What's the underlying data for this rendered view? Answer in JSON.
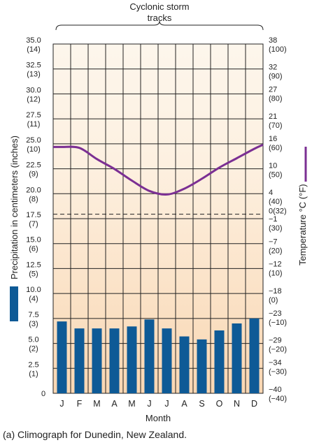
{
  "chart_data": {
    "type": "bar",
    "annotation": "Cyclonic storm tracks",
    "caption": "(a) Climograph for Dunedin, New Zealand.",
    "xlabel": "Month",
    "categories": [
      "J",
      "F",
      "M",
      "A",
      "M",
      "J",
      "J",
      "A",
      "S",
      "O",
      "N",
      "D"
    ],
    "grid": true,
    "series": [
      {
        "name": "Precipitation",
        "type": "bar",
        "axis": "left",
        "color": "#0e5a96",
        "values": [
          7.2,
          6.5,
          6.5,
          6.5,
          6.7,
          7.4,
          6.5,
          5.7,
          5.4,
          6.3,
          7.0,
          7.5
        ]
      },
      {
        "name": "Temperature",
        "type": "line",
        "axis": "right",
        "color": "#7b2f93",
        "values": [
          15.0,
          14.8,
          12.3,
          10.1,
          7.5,
          5.2,
          4.4,
          5.7,
          7.9,
          10.4,
          12.5,
          14.6
        ]
      }
    ],
    "left_axis": {
      "label": "Precipitation in centimeters (inches)",
      "ylim": [
        0,
        35
      ],
      "ticks": [
        {
          "value": 35,
          "main": "35.0",
          "sub": "(14)"
        },
        {
          "value": 32.5,
          "main": "32.5",
          "sub": "(13)"
        },
        {
          "value": 30,
          "main": "30.0",
          "sub": "(12)"
        },
        {
          "value": 27.5,
          "main": "27.5",
          "sub": "(11)"
        },
        {
          "value": 25,
          "main": "25.0",
          "sub": "(10)"
        },
        {
          "value": 22.5,
          "main": "22.5",
          "sub": "(9)"
        },
        {
          "value": 20,
          "main": "20.0",
          "sub": "(8)"
        },
        {
          "value": 17.5,
          "main": "17.5",
          "sub": "(7)"
        },
        {
          "value": 15,
          "main": "15.0",
          "sub": "(6)"
        },
        {
          "value": 12.5,
          "main": "12.5",
          "sub": "(5)"
        },
        {
          "value": 10,
          "main": "10.0",
          "sub": "(4)"
        },
        {
          "value": 7.5,
          "main": "7.5",
          "sub": "(3)"
        },
        {
          "value": 5,
          "main": "5.0",
          "sub": "(2)"
        },
        {
          "value": 2.5,
          "main": "2.5",
          "sub": "(1)"
        },
        {
          "value": 0,
          "main": "0",
          "sub": ""
        }
      ]
    },
    "right_axis": {
      "label": "Temperature °C (°F)",
      "ylim": [
        -40,
        38
      ],
      "freezing_line": 0,
      "ticks": [
        {
          "value": 38,
          "main": "38",
          "sub": "(100)"
        },
        {
          "value": 32,
          "main": "32",
          "sub": "(90)"
        },
        {
          "value": 27,
          "main": "27",
          "sub": "(80)"
        },
        {
          "value": 21,
          "main": "21",
          "sub": "(70)"
        },
        {
          "value": 16,
          "main": "16",
          "sub": "(60)"
        },
        {
          "value": 10,
          "main": "10",
          "sub": "(50)"
        },
        {
          "value": 4,
          "main": "4",
          "sub": "(40)"
        },
        {
          "value": 0,
          "main": "0(32)",
          "sub": ""
        },
        {
          "value": -1,
          "main": "−1",
          "sub": "(30)"
        },
        {
          "value": -7,
          "main": "−7",
          "sub": "(20)"
        },
        {
          "value": -12,
          "main": "−12",
          "sub": "(10)"
        },
        {
          "value": -18,
          "main": "−18",
          "sub": "(0)"
        },
        {
          "value": -23,
          "main": "−23",
          "sub": "(−10)"
        },
        {
          "value": -29,
          "main": "−29",
          "sub": "(−20)"
        },
        {
          "value": -34,
          "main": "−34",
          "sub": "(−30)"
        },
        {
          "value": -40,
          "main": "−40",
          "sub": "(−40)"
        }
      ]
    },
    "colors": {
      "background_top": "#fdf6ec",
      "background_bottom": "#f9d7b3",
      "grid": "#222222"
    }
  }
}
